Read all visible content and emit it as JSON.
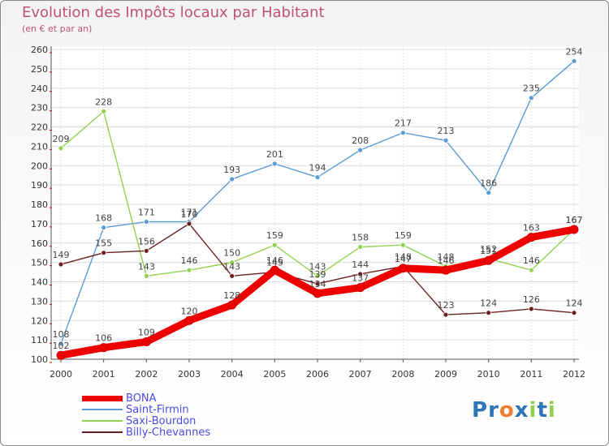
{
  "chart_data": {
    "type": "line",
    "title": "Evolution des Impôts locaux par Habitant",
    "subtitle": "(en € et par an)",
    "xlabel": "",
    "ylabel": "",
    "categories": [
      "2000",
      "2001",
      "2002",
      "2003",
      "2004",
      "2005",
      "2006",
      "2007",
      "2008",
      "2009",
      "2010",
      "2011",
      "2012"
    ],
    "ylim": [
      100,
      260
    ],
    "yticks": [
      100,
      110,
      120,
      130,
      140,
      150,
      160,
      170,
      180,
      190,
      200,
      210,
      220,
      230,
      240,
      250,
      260
    ],
    "grid": true,
    "series": [
      {
        "name": "BONA",
        "color": "#ee0000",
        "values": [
          102,
          106,
          109,
          120,
          128,
          146,
          134,
          137,
          147,
          146,
          151,
          163,
          167
        ]
      },
      {
        "name": "Saint-Firmin",
        "color": "#5b9bd5",
        "values": [
          108,
          168,
          171,
          171,
          193,
          201,
          194,
          208,
          217,
          213,
          186,
          235,
          254
        ]
      },
      {
        "name": "Saxi-Bourdon",
        "color": "#92d050",
        "values": [
          209,
          228,
          143,
          146,
          150,
          159,
          143,
          158,
          159,
          148,
          152,
          146,
          167
        ]
      },
      {
        "name": "Billy-Chevannes",
        "color": "#6b1f1f",
        "values": [
          149,
          155,
          156,
          170,
          143,
          145,
          139,
          144,
          148,
          123,
          124,
          126,
          124
        ]
      }
    ]
  },
  "legend": [
    {
      "label": "BONA",
      "color": "#ee0000"
    },
    {
      "label": "Saint-Firmin",
      "color": "#5b9bd5"
    },
    {
      "label": "Saxi-Bourdon",
      "color": "#92d050"
    },
    {
      "label": "Billy-Chevannes",
      "color": "#6b1f1f"
    }
  ],
  "brand": {
    "letters": [
      "P",
      "r",
      "o",
      "x",
      "i",
      "t",
      "i"
    ],
    "colors": [
      "#2e75b6",
      "#2e75b6",
      "#ed7d31",
      "#2e75b6",
      "#92d050",
      "#2e75b6",
      "#92d050"
    ]
  }
}
